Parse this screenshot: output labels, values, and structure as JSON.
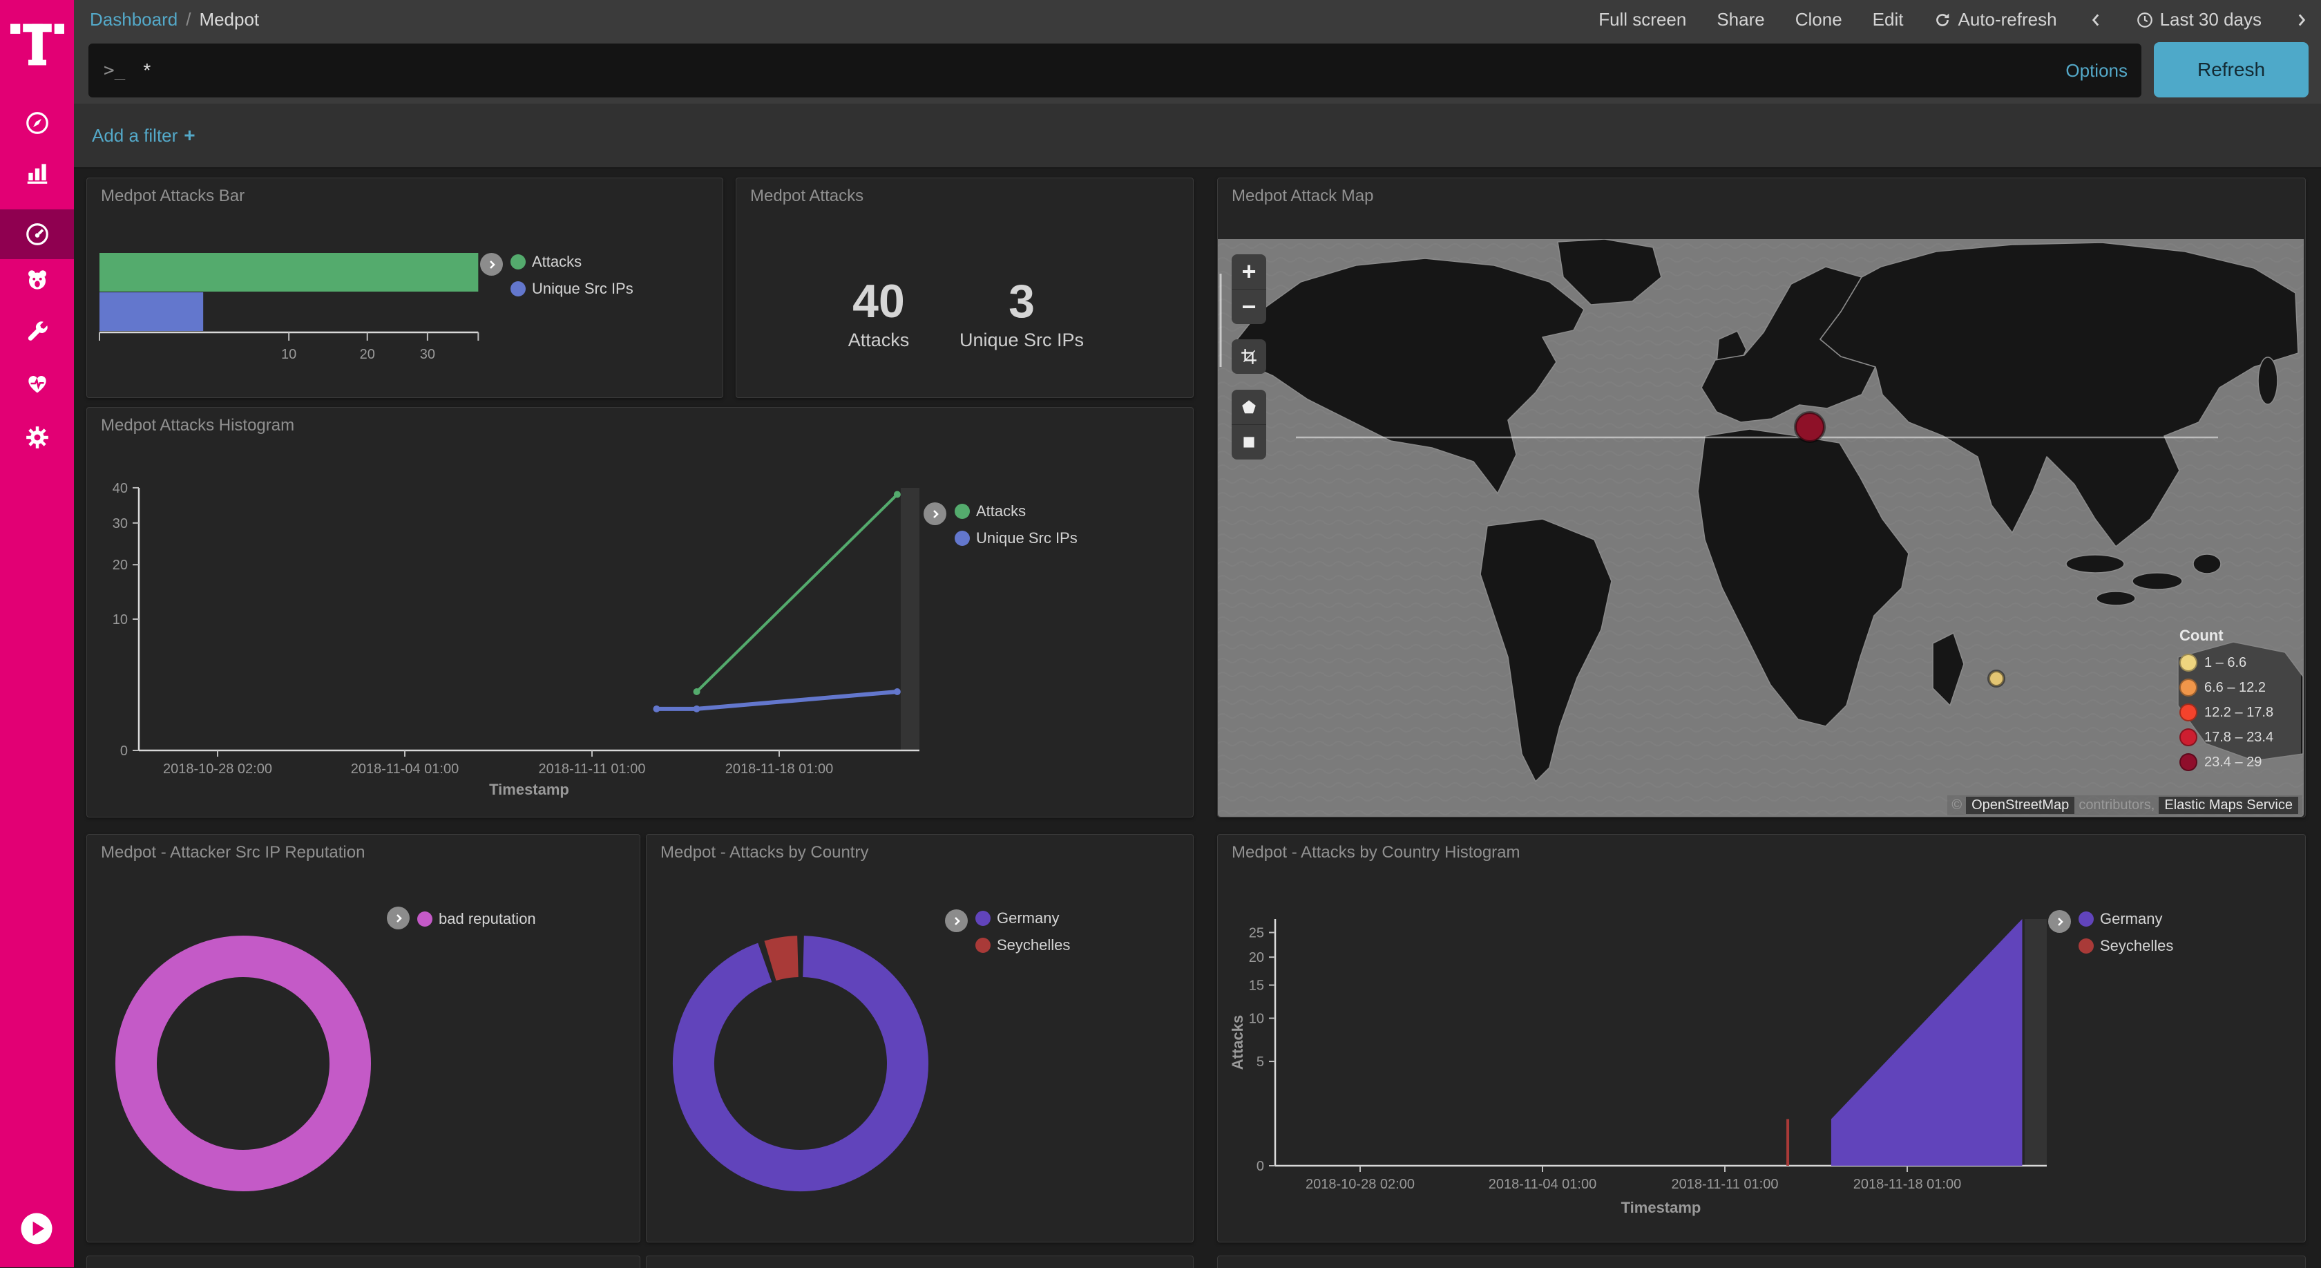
{
  "header": {
    "breadcrumb": {
      "root": "Dashboard",
      "separator": "/",
      "current": "Medpot"
    },
    "menu": [
      {
        "label": "Full screen"
      },
      {
        "label": "Share"
      },
      {
        "label": "Clone"
      },
      {
        "label": "Edit"
      }
    ],
    "auto_refresh_label": "Auto-refresh",
    "time_range_label": "Last 30 days"
  },
  "query_bar": {
    "prompt": ">_",
    "query": "*",
    "options_label": "Options",
    "refresh_label": "Refresh"
  },
  "filter_bar": {
    "add_filter_label": "Add a filter",
    "plus": "+"
  },
  "sidebar": {
    "brand": "telekom-t-logo",
    "selected_index": 2,
    "items": [
      {
        "icon": "compass"
      },
      {
        "icon": "bar-chart"
      },
      {
        "icon": "gauge-dashboard"
      },
      {
        "icon": "bear"
      },
      {
        "icon": "wrench"
      },
      {
        "icon": "heartbeat"
      },
      {
        "icon": "gear"
      }
    ],
    "expand_icon": "play-circle"
  },
  "panels": {
    "bar": {
      "title": "Medpot Attacks Bar"
    },
    "metric": {
      "title": "Medpot Attacks",
      "metrics": [
        {
          "value": "40",
          "label": "Attacks"
        },
        {
          "value": "3",
          "label": "Unique Src IPs"
        }
      ]
    },
    "map": {
      "title": "Medpot Attack Map",
      "count_legend_title": "Count",
      "count_legend": [
        {
          "range": "1 – 6.6",
          "color": "#eed57f"
        },
        {
          "range": "6.6 – 12.2",
          "color": "#f0964a"
        },
        {
          "range": "12.2 – 17.8",
          "color": "#f4432c"
        },
        {
          "range": "17.8 – 23.4",
          "color": "#cd1e30"
        },
        {
          "range": "23.4 – 29",
          "color": "#8f0e2b"
        }
      ],
      "attribution": {
        "copyright": "©",
        "osm": "OpenStreetMap",
        "contributors": "contributors,",
        "ems": "Elastic Maps Service"
      }
    },
    "histogram": {
      "title": "Medpot Attacks Histogram"
    },
    "reputation": {
      "title": "Medpot - Attacker Src IP Reputation"
    },
    "country_pie": {
      "title": "Medpot - Attacks by Country"
    },
    "country_hist": {
      "title": "Medpot - Attacks by Country Histogram"
    }
  },
  "chart_data": [
    {
      "type": "bar",
      "orientation": "horizontal",
      "title": "Medpot Attacks Bar",
      "x_ticks": [
        10,
        20,
        30
      ],
      "xlim": [
        0,
        40
      ],
      "x_scale": "square root",
      "series": [
        {
          "name": "Attacks",
          "value": 40,
          "color": "#54ab6d"
        },
        {
          "name": "Unique Src IPs",
          "value": 3,
          "color": "#6377cd"
        }
      ]
    },
    {
      "type": "metric",
      "title": "Medpot Attacks",
      "values": [
        {
          "label": "Attacks",
          "value": 40
        },
        {
          "label": "Unique Src IPs",
          "value": 3
        }
      ]
    },
    {
      "type": "map",
      "title": "Medpot Attack Map",
      "legend_title": "Count",
      "points": [
        {
          "area": "Western Germany / Central Europe",
          "bucket": "23.4 – 29",
          "color": "#8e1128",
          "x": 857,
          "y": 272,
          "r": 21
        },
        {
          "area": "Seychelles / Indian Ocean",
          "bucket": "1 – 6.6",
          "color": "#e3c573",
          "x": 1127,
          "y": 636,
          "r": 11
        }
      ]
    },
    {
      "type": "line",
      "title": "Medpot Attacks Histogram",
      "xlabel": "Timestamp",
      "x_ticks": [
        "2018-10-28 02:00",
        "2018-11-04 01:00",
        "2018-11-11 01:00",
        "2018-11-18 01:00"
      ],
      "y_ticks": [
        0,
        10,
        20,
        30,
        40
      ],
      "y_scale": "square root",
      "ylim": [
        0,
        40
      ],
      "series": [
        {
          "name": "Attacks",
          "color": "#54ab6d",
          "points": [
            [
              "2018-11-15T00:00",
              2
            ],
            [
              "2018-11-22T12:00",
              38
            ]
          ]
        },
        {
          "name": "Unique Src IPs",
          "color": "#6377cd",
          "points": [
            [
              "2018-11-13T12:00",
              1
            ],
            [
              "2018-11-15T00:00",
              1
            ],
            [
              "2018-11-22T12:00",
              2
            ]
          ]
        }
      ]
    },
    {
      "type": "pie",
      "donut": true,
      "title": "Medpot - Attacker Src IP Reputation",
      "slices": [
        {
          "label": "bad reputation",
          "value": 40,
          "pct": 100,
          "color": "#c45ac7"
        }
      ]
    },
    {
      "type": "pie",
      "donut": true,
      "title": "Medpot - Attacks by Country",
      "slices": [
        {
          "label": "Germany",
          "value": 38,
          "color": "#6144bb"
        },
        {
          "label": "Seychelles",
          "value": 2,
          "color": "#a93a38"
        }
      ]
    },
    {
      "type": "area",
      "title": "Medpot - Attacks by Country Histogram",
      "xlabel": "Timestamp",
      "ylabel": "Attacks",
      "x_ticks": [
        "2018-10-28 02:00",
        "2018-11-04 01:00",
        "2018-11-11 01:00",
        "2018-11-18 01:00"
      ],
      "y_ticks": [
        0,
        5,
        10,
        15,
        20,
        25
      ],
      "y_scale": "square root",
      "series": [
        {
          "name": "Germany",
          "color": "#6144bb",
          "style": "area",
          "points": [
            [
              "2018-11-15T04:00",
              1
            ],
            [
              "2018-11-22T12:00",
              28
            ]
          ]
        },
        {
          "name": "Seychelles",
          "color": "#a93a38",
          "style": "bar",
          "points": [
            [
              "2018-11-13T12:00",
              1
            ]
          ]
        }
      ]
    }
  ]
}
